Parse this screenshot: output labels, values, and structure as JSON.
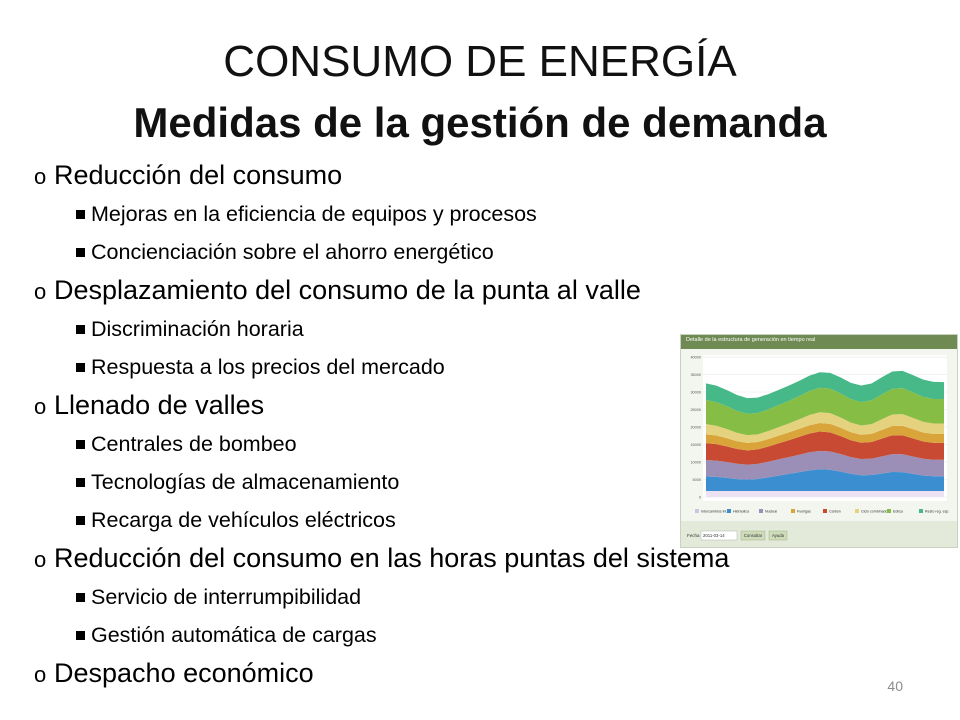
{
  "slide": {
    "title": "CONSUMO DE ENERGÍA",
    "subtitle": "Medidas de la gestión de demanda",
    "page_number": "40"
  },
  "bullets": [
    {
      "level": 1,
      "marker": "o",
      "text": "Reducción del consumo"
    },
    {
      "level": 2,
      "marker": "square",
      "text": "Mejoras en la eficiencia de equipos y procesos"
    },
    {
      "level": 2,
      "marker": "square",
      "text": "Concienciación sobre el ahorro energético"
    },
    {
      "level": 1,
      "marker": "o",
      "text": "Desplazamiento del consumo de la punta al valle"
    },
    {
      "level": 2,
      "marker": "square",
      "text": "Discriminación horaria"
    },
    {
      "level": 2,
      "marker": "square",
      "text": "Respuesta a los precios del mercado"
    },
    {
      "level": 1,
      "marker": "o",
      "text": "Llenado de valles"
    },
    {
      "level": 2,
      "marker": "square",
      "text": "Centrales de bombeo"
    },
    {
      "level": 2,
      "marker": "square",
      "text": "Tecnologías de almacenamiento"
    },
    {
      "level": 2,
      "marker": "square",
      "text": "Recarga de vehículos eléctricos"
    },
    {
      "level": 1,
      "marker": "o",
      "text": "Reducción del consumo en las horas puntas del sistema"
    },
    {
      "level": 2,
      "marker": "square",
      "text": "Servicio de interrumpibilidad"
    },
    {
      "level": 2,
      "marker": "square",
      "text": "Gestión automática de cargas"
    },
    {
      "level": 1,
      "marker": "o",
      "text": "Despacho económico"
    }
  ],
  "figure": {
    "header": "Detalle de la estructura de generación en tiempo real",
    "y_ticks": [
      "40000",
      "35000",
      "30000",
      "25000",
      "20000",
      "15000",
      "10000",
      "5000",
      "0"
    ],
    "legend": [
      "Intercambios int.",
      "Hidráulica",
      "Nuclear",
      "Fuel/gas",
      "Carbón",
      "Ciclo combinado",
      "Eólica",
      "Resto reg. esp."
    ],
    "date_label": "Fecha",
    "date_value": "2011-03-14",
    "btn_consult": "Consultar",
    "btn_ayuda": "Ayuda",
    "colors": {
      "header": "#6f8b53",
      "nuclear": "#9b8fb8",
      "hidraulica": "#3b8fd0",
      "fuel_gas": "#d9a53a",
      "carbon": "#c84a33",
      "ciclo_combinado": "#e5d27f",
      "eolica": "#86bd45",
      "resto_reg": "#47b989"
    }
  }
}
